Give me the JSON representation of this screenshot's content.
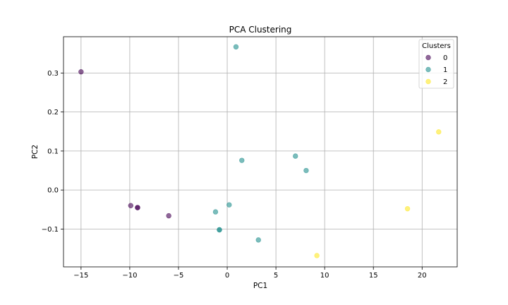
{
  "chart_data": {
    "type": "scatter",
    "title": "PCA Clustering",
    "xlabel": "PC1",
    "ylabel": "PC2",
    "xlim": [
      -16.8,
      23.6
    ],
    "ylim": [
      -0.197,
      0.393
    ],
    "xticks": [
      -15,
      -10,
      -5,
      0,
      5,
      10,
      15,
      20
    ],
    "xtick_labels": [
      "−15",
      "−10",
      "−5",
      "0",
      "5",
      "10",
      "15",
      "20"
    ],
    "yticks": [
      -0.1,
      0.0,
      0.1,
      0.2,
      0.3
    ],
    "ytick_labels": [
      "−0.1",
      "0.0",
      "0.1",
      "0.2",
      "0.3"
    ],
    "grid": true,
    "legend": {
      "title": "Clusters",
      "placement": "top-right"
    },
    "series": [
      {
        "name": "0",
        "color": "#440154",
        "points": [
          {
            "x": -15.0,
            "y": 0.303
          },
          {
            "x": -9.9,
            "y": -0.04
          },
          {
            "x": -9.2,
            "y": -0.045
          },
          {
            "x": -9.2,
            "y": -0.045
          },
          {
            "x": -6.0,
            "y": -0.066
          }
        ]
      },
      {
        "name": "1",
        "color": "#21908d",
        "points": [
          {
            "x": 0.9,
            "y": 0.367
          },
          {
            "x": 1.5,
            "y": 0.076
          },
          {
            "x": 7.0,
            "y": 0.087
          },
          {
            "x": 8.1,
            "y": 0.05
          },
          {
            "x": 0.2,
            "y": -0.038
          },
          {
            "x": -1.2,
            "y": -0.056
          },
          {
            "x": -0.8,
            "y": -0.102
          },
          {
            "x": -0.8,
            "y": -0.102
          },
          {
            "x": 3.2,
            "y": -0.128
          }
        ]
      },
      {
        "name": "2",
        "color": "#fde725",
        "points": [
          {
            "x": 21.7,
            "y": 0.149
          },
          {
            "x": 18.5,
            "y": -0.048
          },
          {
            "x": 9.2,
            "y": -0.168
          }
        ]
      }
    ]
  }
}
